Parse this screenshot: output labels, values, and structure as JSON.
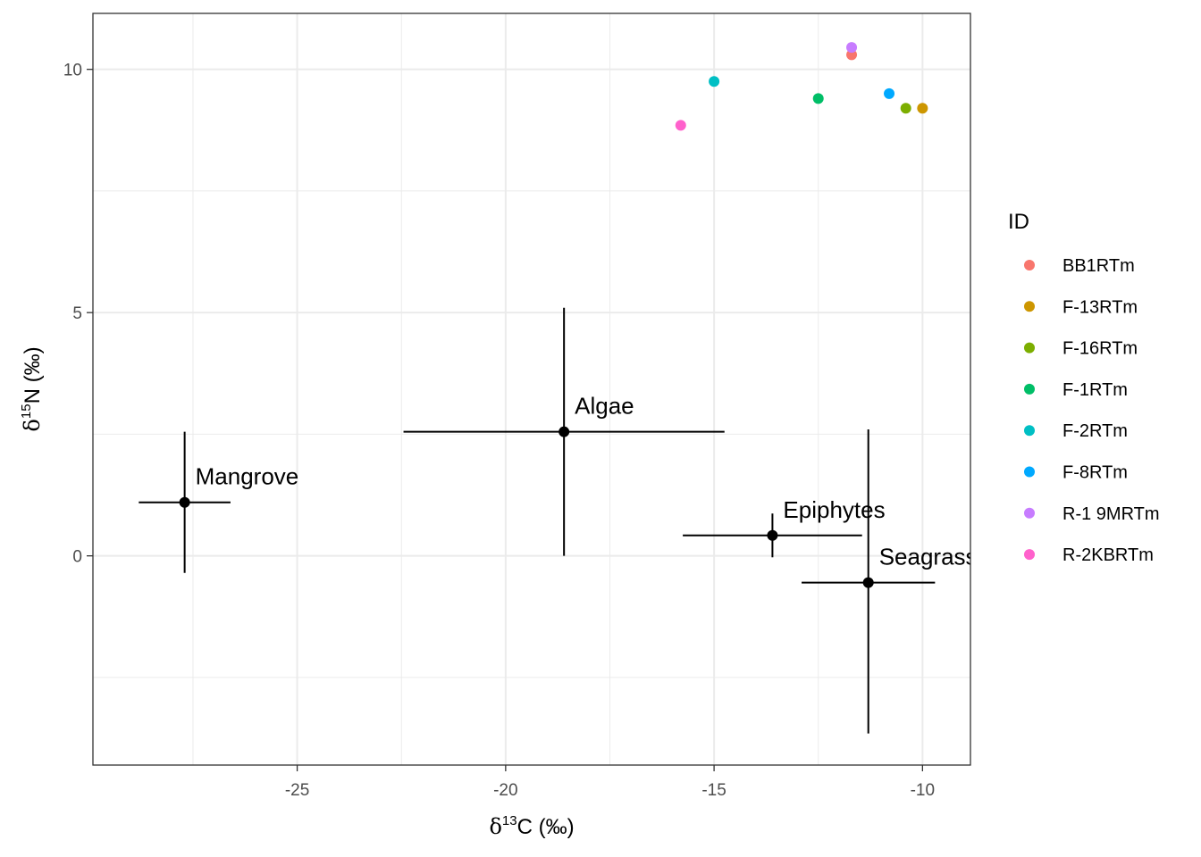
{
  "chart_data": {
    "type": "scatter",
    "x_axis": {
      "label_prefix": "δ",
      "label_sup": "13",
      "label_suffix": "C (‰)",
      "range": [
        -29.9,
        -8.85
      ],
      "ticks": [
        -25,
        -20,
        -15,
        -10
      ],
      "tick_labels": [
        "-25",
        "-20",
        "-15",
        "-10"
      ],
      "minor_ticks": [
        -27.5,
        -22.5,
        -17.5,
        -12.5
      ]
    },
    "y_axis": {
      "label_prefix": "δ",
      "label_sup": "15",
      "label_suffix": "N (‰)",
      "range": [
        -4.3,
        11.15
      ],
      "ticks": [
        0,
        5,
        10
      ],
      "tick_labels": [
        "0",
        "5",
        "10"
      ],
      "minor_ticks": [
        -2.5,
        2.5,
        7.5
      ]
    },
    "grid": true,
    "legend": {
      "title": "ID",
      "placement": "right"
    },
    "consumers": [
      {
        "name": "BB1RTm",
        "x": -11.7,
        "y": 10.3,
        "color": "#F8766D"
      },
      {
        "name": "F-13RTm",
        "x": -10.0,
        "y": 9.2,
        "color": "#CD9600"
      },
      {
        "name": "F-16RTm",
        "x": -10.4,
        "y": 9.2,
        "color": "#7CAE00"
      },
      {
        "name": "F-1RTm",
        "x": -12.5,
        "y": 9.4,
        "color": "#00BE67"
      },
      {
        "name": "F-2RTm",
        "x": -15.0,
        "y": 9.75,
        "color": "#00BFC4"
      },
      {
        "name": "F-8RTm",
        "x": -10.8,
        "y": 9.5,
        "color": "#00A9FF"
      },
      {
        "name": "R-1 9MRTm",
        "x": -11.7,
        "y": 10.45,
        "color": "#C77CFF"
      },
      {
        "name": "R-2KBRTm",
        "x": -15.8,
        "y": 8.85,
        "color": "#FF61CC"
      }
    ],
    "sources": [
      {
        "label": "Mangrove",
        "x": -27.7,
        "y": 1.1,
        "x_err": 1.1,
        "y_err_low": 1.45,
        "y_err_high": 1.45
      },
      {
        "label": "Algae",
        "x": -18.6,
        "y": 2.55,
        "x_err": 3.85,
        "y_err_low": 2.55,
        "y_err_high": 2.55
      },
      {
        "label": "Epiphytes",
        "x": -13.6,
        "y": 0.42,
        "x_err": 2.15,
        "y_err_low": 0.45,
        "y_err_high": 0.45
      },
      {
        "label": "Seagrass",
        "x": -11.3,
        "y": -0.55,
        "x_err": 1.6,
        "y_err_low": 3.1,
        "y_err_high": 3.15
      }
    ]
  }
}
